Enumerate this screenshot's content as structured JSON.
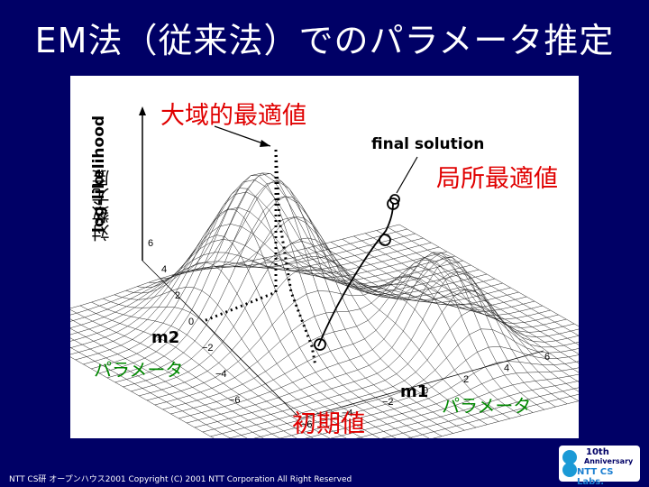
{
  "slide": {
    "title": "EM法（従来法）でのパラメータ推定",
    "footer": "NTT CS研 オープンハウス2001 Copyright (C) 2001 NTT Corporation All Right Reserved"
  },
  "figure": {
    "y_axis_label": "log-likelihood",
    "y_axis_label_ja": "対数尤度",
    "x_axis_label": "m1",
    "z_axis_label": "m2",
    "global_optimum_label": "大域的最適値",
    "local_optimum_label": "局所最適値",
    "final_solution_label": "final solution",
    "initial_value_label": "初期値",
    "param_label_left": "パラメータ",
    "param_label_right": "パラメータ",
    "m1_ticks": [
      "−6",
      "−4",
      "−2",
      "0",
      "2",
      "4",
      "6"
    ],
    "m2_ticks": [
      "−6",
      "−4",
      "−2",
      "0",
      "2",
      "4",
      "6"
    ]
  },
  "logo": {
    "line1": "10th",
    "line2": "Anniversary",
    "line3": "NTT CS Labs."
  },
  "colors": {
    "background": "#000066",
    "highlight_red": "#e00000",
    "highlight_green": "#008800"
  }
}
